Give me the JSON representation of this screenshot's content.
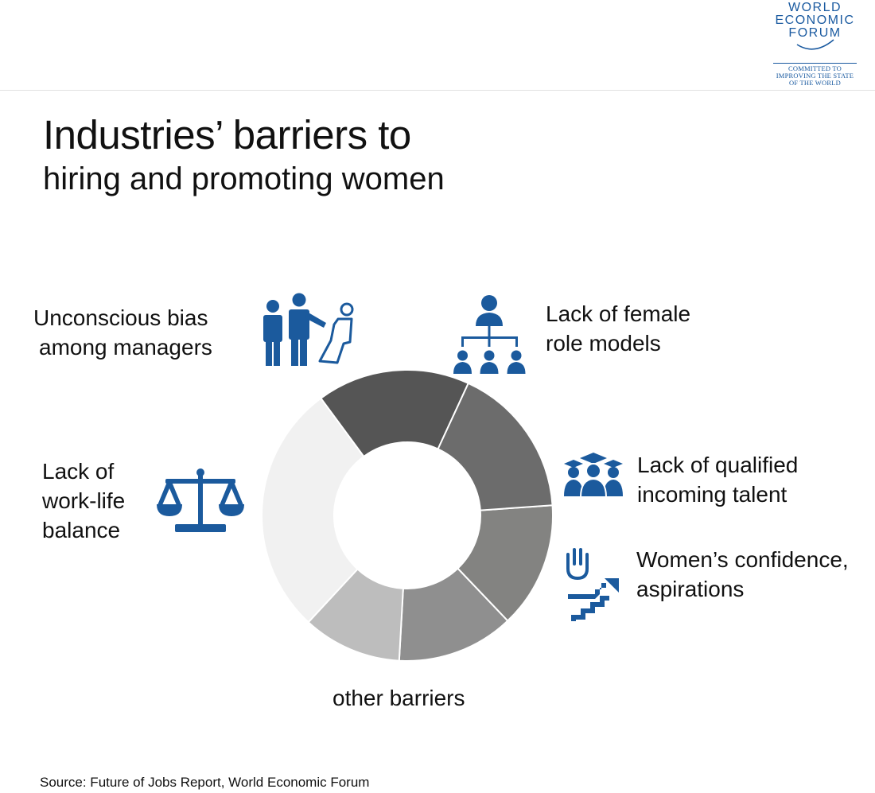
{
  "logo": {
    "lines": [
      "WORLD",
      "ECONOMIC",
      "FORUM"
    ],
    "tagline": [
      "COMMITTED TO",
      "IMPROVING THE STATE",
      "OF THE WORLD"
    ]
  },
  "title": {
    "line1": "Industries’ barriers to",
    "line2": "hiring and promoting women"
  },
  "icons": {
    "bias": "managers-bias-icon",
    "role_models": "org-chart-icon",
    "talent": "graduates-icon",
    "confidence": "hand-stairs-icon",
    "balance": "scales-icon"
  },
  "colors": {
    "icon_blue": "#1b5a9d",
    "brand_blue": "#1a5aa0"
  },
  "chart_data": {
    "type": "pie",
    "donut": true,
    "start_angle_deg": 86,
    "categories": [
      "Lack of female role models",
      "Lack of qualified incoming talent",
      "Women’s confidence, aspirations",
      "other barriers",
      "Lack of work-life balance",
      "Unconscious bias among managers"
    ],
    "labels": [
      [
        "Lack of female",
        "role models"
      ],
      [
        "Lack of qualified",
        "incoming talent"
      ],
      [
        "Women’s confidence,",
        "aspirations"
      ],
      [
        "other barriers"
      ],
      [
        "Lack of",
        "work-life",
        "balance"
      ],
      [
        "Unconscious bias",
        "among managers"
      ]
    ],
    "values": [
      14,
      13,
      11,
      28,
      17,
      17
    ],
    "colors": [
      "#838381",
      "#8f8f8f",
      "#bdbdbd",
      "#f1f1f1",
      "#555555",
      "#6c6c6c"
    ]
  },
  "source": "Source: Future of Jobs Report, World Economic Forum"
}
